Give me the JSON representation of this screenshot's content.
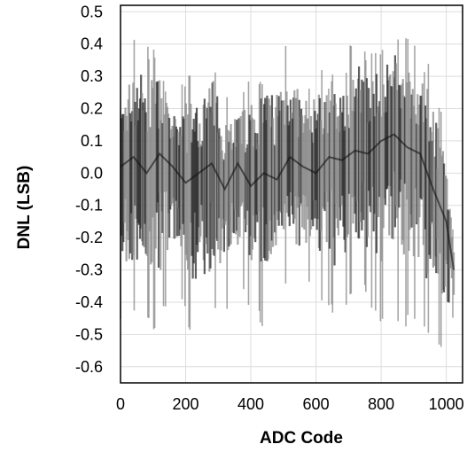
{
  "chart_data": {
    "type": "line",
    "title": "",
    "xlabel": "ADC Code",
    "ylabel": "DNL (LSB)",
    "xlim": [
      0,
      1050
    ],
    "ylim": [
      -0.65,
      0.52
    ],
    "x_ticks": [
      0,
      200,
      400,
      600,
      800,
      1000
    ],
    "x_tick_labels": [
      "0",
      "200",
      "400",
      "600",
      "800",
      "1000"
    ],
    "y_ticks": [
      0.5,
      0.4,
      0.3,
      0.2,
      0.1,
      0.0,
      -0.1,
      -0.2,
      -0.3,
      -0.4,
      -0.5,
      -0.6
    ],
    "y_tick_labels": [
      "0.5",
      "0.4",
      "0.3",
      "0.2",
      "0.1",
      "0.0",
      "-0.1",
      "-0.2",
      "-0.3",
      "-0.4",
      "-0.5",
      "-0.6"
    ],
    "grid": true,
    "series": [
      {
        "x": [
          0,
          40,
          80,
          120,
          160,
          200,
          240,
          280,
          320,
          360,
          400,
          440,
          480,
          520,
          560,
          600,
          640,
          680,
          720,
          760,
          800,
          840,
          880,
          920,
          960,
          1000,
          1023
        ],
        "values": [
          0.02,
          0.05,
          0.0,
          0.06,
          0.02,
          -0.03,
          0.0,
          0.03,
          -0.05,
          0.03,
          -0.04,
          0.0,
          -0.02,
          0.05,
          0.02,
          0.0,
          0.05,
          0.04,
          0.07,
          0.06,
          0.1,
          0.12,
          0.08,
          0.06,
          -0.05,
          -0.15,
          -0.3
        ],
        "upper_envelope": [
          0.25,
          0.43,
          0.42,
          0.38,
          0.22,
          0.32,
          0.28,
          0.4,
          0.28,
          0.24,
          0.3,
          0.34,
          0.38,
          0.43,
          0.28,
          0.35,
          0.32,
          0.33,
          0.44,
          0.4,
          0.38,
          0.46,
          0.42,
          0.38,
          0.34,
          0.1,
          -0.2
        ],
        "lower_envelope": [
          -0.47,
          -0.46,
          -0.45,
          -0.52,
          -0.3,
          -0.47,
          -0.52,
          -0.48,
          -0.43,
          -0.38,
          -0.46,
          -0.49,
          -0.36,
          -0.39,
          -0.39,
          -0.36,
          -0.44,
          -0.5,
          -0.35,
          -0.42,
          -0.5,
          -0.45,
          -0.48,
          -0.5,
          -0.54,
          -0.58,
          -0.46
        ]
      }
    ],
    "colors": {
      "trace": "#2a2a2a",
      "trace_light": "#888888",
      "grid": "#dddddd",
      "frame": "#000000"
    }
  }
}
